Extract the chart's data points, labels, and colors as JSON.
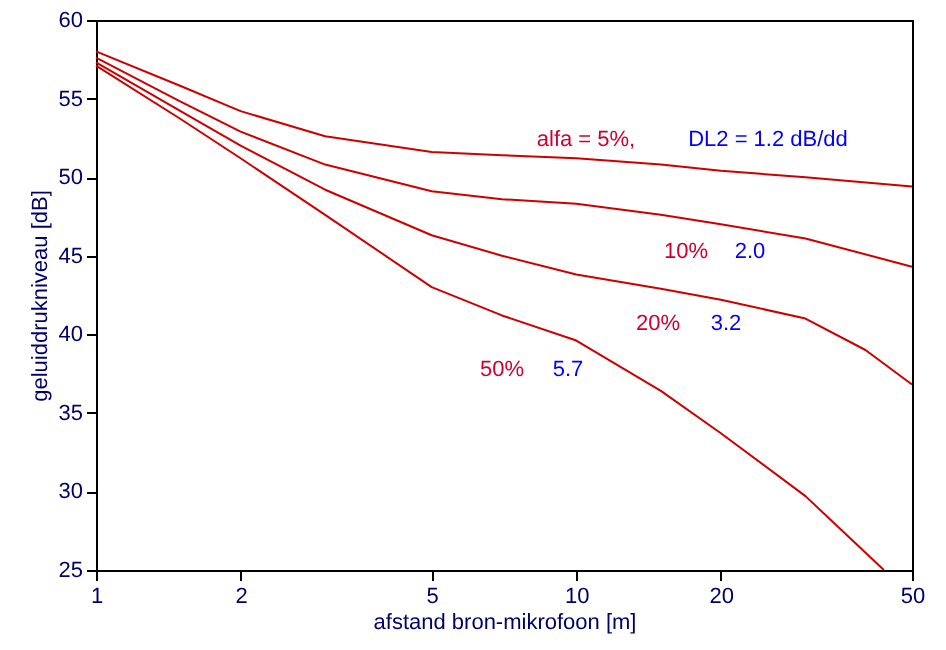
{
  "chart_data": {
    "type": "line",
    "xlabel": "afstand bron-mikrofoon  [m]",
    "ylabel": "geluiddrukniveau  [dB]",
    "log": "x",
    "xlim": [
      1,
      50
    ],
    "xticks": [
      1,
      2,
      5,
      10,
      20,
      50
    ],
    "ylim": [
      25,
      60
    ],
    "yticks": [
      25,
      30,
      35,
      40,
      45,
      50,
      55,
      60
    ],
    "grid": false,
    "marker": "none",
    "line_style": "solid",
    "series": [
      {
        "color": "#cc0000",
        "x": [
          1,
          1.5,
          2,
          3,
          5,
          7,
          10,
          15,
          20,
          30,
          50
        ],
        "values": [
          58.0,
          55.8,
          54.2,
          52.6,
          51.6,
          51.4,
          51.2,
          50.8,
          50.4,
          50.0,
          49.4
        ]
      },
      {
        "color": "#cc0000",
        "x": [
          1,
          1.5,
          2,
          3,
          5,
          7,
          10,
          15,
          20,
          30,
          50
        ],
        "values": [
          57.6,
          54.8,
          52.9,
          50.8,
          49.1,
          48.6,
          48.3,
          47.6,
          47.0,
          46.1,
          44.3
        ]
      },
      {
        "color": "#cc0000",
        "x": [
          1,
          1.5,
          2,
          3,
          5,
          7,
          10,
          15,
          20,
          30,
          40,
          50
        ],
        "values": [
          57.3,
          54.2,
          52.0,
          49.2,
          46.3,
          45.0,
          43.8,
          42.9,
          42.2,
          41.0,
          39.0,
          36.8
        ]
      },
      {
        "color": "#cc0000",
        "x": [
          1,
          1.5,
          2,
          3,
          5,
          7,
          10,
          15,
          20,
          30,
          43.7
        ],
        "values": [
          57.1,
          53.7,
          51.2,
          47.6,
          43.0,
          41.2,
          39.6,
          36.4,
          33.7,
          29.7,
          25.0
        ]
      }
    ],
    "annotations": [
      "alfa = 5%,",
      "DL2 = 1.2 dB/dd",
      "10%",
      "2.0",
      "20%",
      "3.2",
      "50%",
      "5.7"
    ]
  }
}
